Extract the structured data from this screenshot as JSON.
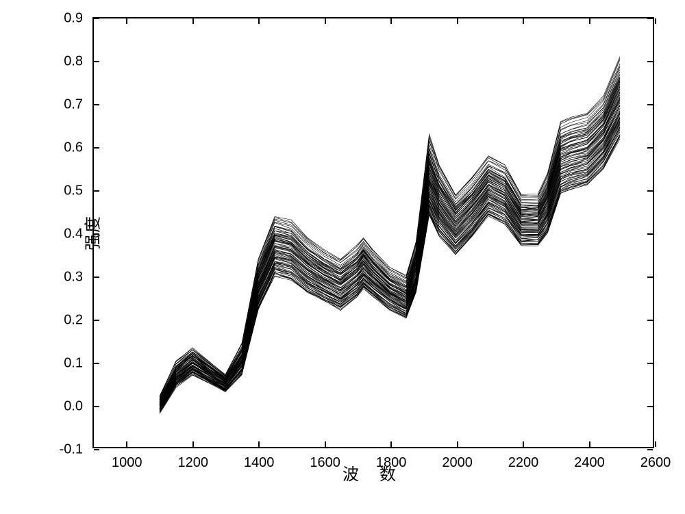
{
  "chart": {
    "type": "line",
    "title": null,
    "xlabel": "波 数",
    "ylabel": "强度",
    "label_fontsize": 24,
    "tick_fontsize": 20,
    "background_color": "#ffffff",
    "border_color": "#000000",
    "line_color": "#000000",
    "line_width": 0.6,
    "xlim": [
      900,
      2600
    ],
    "ylim": [
      -0.1,
      0.9
    ],
    "x_ticks": [
      1000,
      1200,
      1400,
      1600,
      1800,
      2000,
      2200,
      2400,
      2600
    ],
    "y_ticks": [
      -0.1,
      0.0,
      0.1,
      0.2,
      0.3,
      0.4,
      0.5,
      0.6,
      0.7,
      0.8,
      0.9
    ],
    "y_tick_labels": [
      "-0.1",
      "0.0",
      "0.1",
      "0.2",
      "0.3",
      "0.4",
      "0.5",
      "0.6",
      "0.7",
      "0.8",
      "0.9"
    ],
    "n_series": 80,
    "x_values": [
      1100,
      1150,
      1200,
      1250,
      1300,
      1350,
      1400,
      1450,
      1500,
      1550,
      1600,
      1650,
      1700,
      1720,
      1750,
      1800,
      1850,
      1880,
      1920,
      1950,
      2000,
      2050,
      2100,
      2150,
      2200,
      2250,
      2280,
      2320,
      2350,
      2400,
      2450,
      2500
    ],
    "base_curve_low": [
      -0.02,
      0.04,
      0.07,
      0.05,
      0.03,
      0.07,
      0.22,
      0.3,
      0.29,
      0.26,
      0.24,
      0.22,
      0.25,
      0.27,
      0.25,
      0.22,
      0.2,
      0.26,
      0.44,
      0.39,
      0.35,
      0.39,
      0.44,
      0.42,
      0.37,
      0.37,
      0.4,
      0.49,
      0.5,
      0.51,
      0.55,
      0.62
    ],
    "base_curve_high": [
      0.02,
      0.1,
      0.13,
      0.1,
      0.07,
      0.14,
      0.34,
      0.44,
      0.43,
      0.39,
      0.36,
      0.34,
      0.37,
      0.39,
      0.36,
      0.32,
      0.3,
      0.38,
      0.63,
      0.56,
      0.49,
      0.53,
      0.58,
      0.56,
      0.49,
      0.49,
      0.54,
      0.66,
      0.67,
      0.68,
      0.72,
      0.81
    ],
    "series_weights": [
      0.0,
      0.01,
      0.02,
      0.03,
      0.04,
      0.05,
      0.06,
      0.08,
      0.09,
      0.1,
      0.11,
      0.12,
      0.13,
      0.14,
      0.15,
      0.17,
      0.18,
      0.19,
      0.2,
      0.21,
      0.22,
      0.23,
      0.24,
      0.25,
      0.27,
      0.28,
      0.29,
      0.3,
      0.31,
      0.32,
      0.33,
      0.34,
      0.35,
      0.37,
      0.38,
      0.39,
      0.4,
      0.41,
      0.42,
      0.43,
      0.44,
      0.46,
      0.47,
      0.48,
      0.49,
      0.5,
      0.51,
      0.52,
      0.53,
      0.54,
      0.56,
      0.57,
      0.58,
      0.59,
      0.6,
      0.61,
      0.62,
      0.63,
      0.65,
      0.66,
      0.67,
      0.68,
      0.69,
      0.7,
      0.71,
      0.72,
      0.73,
      0.75,
      0.76,
      0.77,
      0.78,
      0.8,
      0.82,
      0.84,
      0.87,
      0.9,
      0.93,
      0.96,
      0.98,
      1.0
    ]
  }
}
